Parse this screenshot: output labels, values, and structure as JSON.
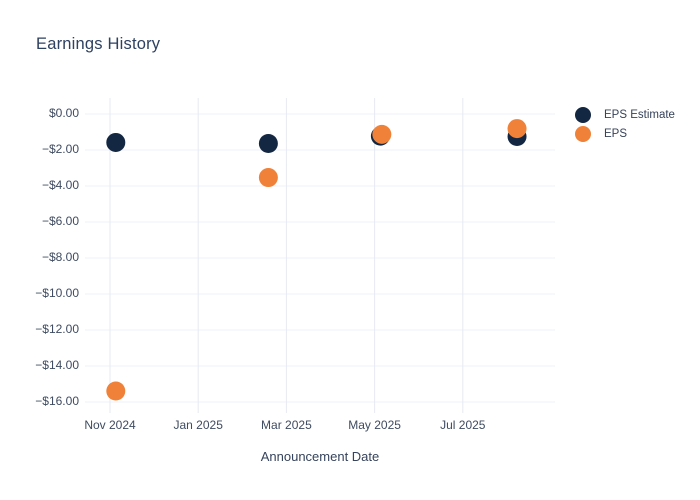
{
  "chart_data": {
    "type": "scatter",
    "title": "Earnings History",
    "xlabel": "Announcement Date",
    "ylabel": "",
    "grid": true,
    "legend_position": "top-right",
    "background_color": "#ffffff",
    "h_gridline_color": "#eef1f7",
    "v_gridline_color": "#e7eaf3",
    "ylim": [
      0.9,
      -16.6
    ],
    "x_ticks": [
      {
        "label": "Nov 2024",
        "month_index": 0
      },
      {
        "label": "Jan 2025",
        "month_index": 2
      },
      {
        "label": "Mar 2025",
        "month_index": 4
      },
      {
        "label": "May 2025",
        "month_index": 6
      },
      {
        "label": "Jul 2025",
        "month_index": 8
      }
    ],
    "y_ticks": [
      {
        "label": "$0.00",
        "value": 0
      },
      {
        "label": "−$2.00",
        "value": -2
      },
      {
        "label": "−$4.00",
        "value": -4
      },
      {
        "label": "−$6.00",
        "value": -6
      },
      {
        "label": "−$8.00",
        "value": -8
      },
      {
        "label": "−$10.00",
        "value": -10
      },
      {
        "label": "−$12.00",
        "value": -12
      },
      {
        "label": "−$14.00",
        "value": -14
      },
      {
        "label": "−$16.00",
        "value": -16
      }
    ],
    "series": [
      {
        "name": "EPS Estimate",
        "color": "#132742",
        "marker": "circle",
        "points": [
          {
            "date": "2024-11-05",
            "value": -1.58
          },
          {
            "date": "2025-02-19",
            "value": -1.64
          },
          {
            "date": "2025-05-05",
            "value": -1.23
          },
          {
            "date": "2025-08-08",
            "value": -1.25
          }
        ]
      },
      {
        "name": "EPS",
        "color": "#f08138",
        "marker": "circle",
        "points": [
          {
            "date": "2024-11-05",
            "value": -15.39
          },
          {
            "date": "2025-02-19",
            "value": -3.53
          },
          {
            "date": "2025-05-06",
            "value": -1.13
          },
          {
            "date": "2025-08-08",
            "value": -0.81
          }
        ]
      }
    ]
  }
}
